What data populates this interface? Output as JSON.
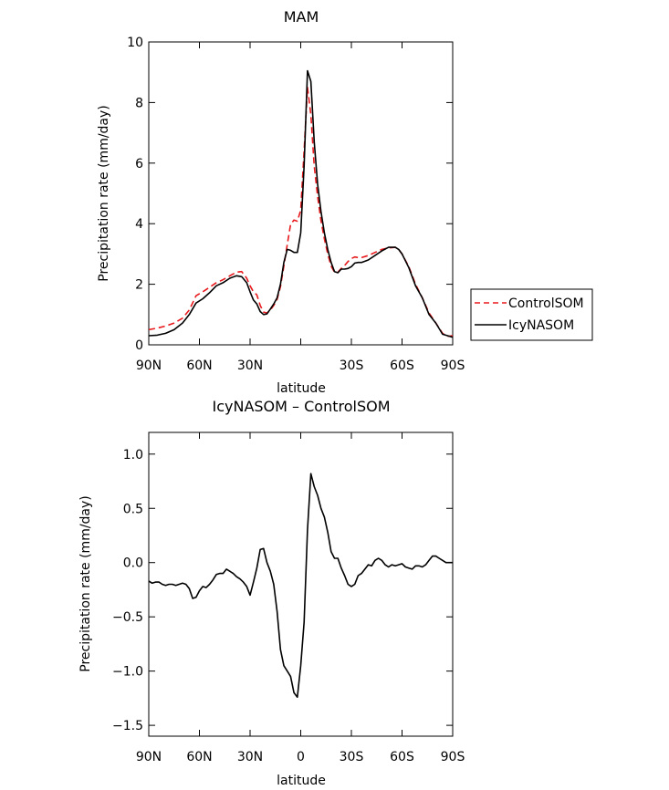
{
  "chart_data": [
    {
      "type": "line",
      "title": "MAM",
      "xlabel": "latitude",
      "ylabel": "Precipitation rate (mm/day)",
      "xlim": [
        90,
        -90
      ],
      "ylim": [
        0,
        10
      ],
      "x_ticks": [
        90,
        60,
        30,
        0,
        -30,
        -60,
        -90
      ],
      "x_tick_labels": [
        "90N",
        "60N",
        "30N",
        "",
        "30S",
        "60S",
        "90S"
      ],
      "y_ticks": [
        0,
        2,
        4,
        6,
        8,
        10
      ],
      "y_tick_labels": [
        "0",
        "2",
        "4",
        "6",
        "8",
        "10"
      ],
      "legend_position": "outside-right",
      "series": [
        {
          "name": "ControlSOM",
          "color": "#e8191c",
          "dash": "dashed",
          "x": [
            90,
            85,
            80,
            75,
            70,
            66,
            62,
            58,
            54,
            50,
            46,
            42,
            38,
            35,
            32,
            30,
            28,
            26,
            24,
            22,
            20,
            18,
            16,
            14,
            12,
            10,
            8,
            6,
            4,
            2,
            0,
            -2,
            -4,
            -6,
            -8,
            -10,
            -12,
            -14,
            -16,
            -18,
            -20,
            -22,
            -24,
            -26,
            -28,
            -30,
            -32,
            -34,
            -36,
            -40,
            -44,
            -48,
            -52,
            -56,
            -58,
            -60,
            -64,
            -68,
            -72,
            -76,
            -80,
            -84,
            -87,
            -90
          ],
          "values": [
            0.5,
            0.55,
            0.62,
            0.72,
            0.88,
            1.15,
            1.62,
            1.75,
            1.9,
            2.05,
            2.15,
            2.28,
            2.4,
            2.42,
            2.2,
            1.95,
            1.75,
            1.65,
            1.3,
            1.08,
            1.05,
            1.15,
            1.3,
            1.5,
            1.92,
            2.6,
            3.3,
            3.98,
            4.12,
            4.08,
            4.45,
            6.4,
            8.5,
            7.6,
            5.9,
            4.9,
            4.1,
            3.5,
            3.0,
            2.6,
            2.4,
            2.4,
            2.52,
            2.62,
            2.75,
            2.85,
            2.9,
            2.88,
            2.88,
            2.95,
            3.05,
            3.15,
            3.2,
            3.22,
            3.15,
            3.0,
            2.58,
            2.0,
            1.55,
            1.05,
            0.72,
            0.38,
            0.28,
            0.3
          ]
        },
        {
          "name": "IcyNASOM",
          "color": "#000000",
          "dash": "solid",
          "x": [
            90,
            85,
            80,
            75,
            70,
            66,
            62,
            58,
            54,
            50,
            46,
            42,
            38,
            35,
            32,
            30,
            28,
            26,
            24,
            22,
            20,
            18,
            16,
            14,
            12,
            10,
            8,
            6,
            4,
            2,
            0,
            -2,
            -4,
            -6,
            -8,
            -10,
            -12,
            -14,
            -16,
            -18,
            -20,
            -22,
            -24,
            -26,
            -28,
            -30,
            -32,
            -34,
            -36,
            -40,
            -44,
            -48,
            -52,
            -56,
            -58,
            -60,
            -64,
            -68,
            -72,
            -76,
            -80,
            -84,
            -87,
            -90
          ],
          "values": [
            0.3,
            0.32,
            0.38,
            0.5,
            0.72,
            1.0,
            1.38,
            1.52,
            1.72,
            1.95,
            2.05,
            2.2,
            2.28,
            2.25,
            2.05,
            1.75,
            1.48,
            1.35,
            1.1,
            1.0,
            1.02,
            1.18,
            1.35,
            1.55,
            2.0,
            2.72,
            3.15,
            3.12,
            3.05,
            3.05,
            3.7,
            5.9,
            9.05,
            8.7,
            6.7,
            5.3,
            4.4,
            3.7,
            3.15,
            2.72,
            2.42,
            2.38,
            2.5,
            2.5,
            2.52,
            2.58,
            2.7,
            2.72,
            2.72,
            2.8,
            2.95,
            3.1,
            3.22,
            3.22,
            3.15,
            3.0,
            2.55,
            1.95,
            1.55,
            1.0,
            0.72,
            0.35,
            0.3,
            0.25
          ]
        }
      ]
    },
    {
      "type": "line",
      "title": "IcyNASOM – ControlSOM",
      "xlabel": "latitude",
      "ylabel": "Precipitation rate (mm/day)",
      "xlim": [
        90,
        -90
      ],
      "ylim": [
        -1.6,
        1.2
      ],
      "x_ticks": [
        90,
        60,
        30,
        0,
        -30,
        -60,
        -90
      ],
      "x_tick_labels": [
        "90N",
        "60N",
        "30N",
        "0",
        "30S",
        "60S",
        "90S"
      ],
      "y_ticks": [
        -1.5,
        -1.0,
        -0.5,
        0.0,
        0.5,
        1.0
      ],
      "y_tick_labels": [
        "−1.5",
        "−1.0",
        "−0.5",
        "0.0",
        "0.5",
        "1.0"
      ],
      "series": [
        {
          "name": "",
          "color": "#000000",
          "dash": "solid",
          "x": [
            90,
            88,
            86,
            84,
            82,
            80,
            78,
            76,
            74,
            72,
            70,
            68,
            66,
            64,
            62,
            60,
            58,
            56,
            54,
            52,
            50,
            48,
            46,
            44,
            42,
            40,
            38,
            36,
            34,
            32,
            30,
            28,
            26,
            24,
            22,
            20,
            18,
            16,
            14,
            12,
            10,
            8,
            6,
            4,
            2,
            0,
            -2,
            -4,
            -6,
            -8,
            -10,
            -12,
            -14,
            -16,
            -18,
            -20,
            -22,
            -24,
            -26,
            -28,
            -30,
            -32,
            -34,
            -36,
            -38,
            -40,
            -42,
            -44,
            -46,
            -48,
            -50,
            -52,
            -54,
            -56,
            -58,
            -60,
            -62,
            -64,
            -66,
            -68,
            -70,
            -72,
            -74,
            -76,
            -78,
            -80,
            -82,
            -84,
            -86,
            -88,
            -90
          ],
          "values": [
            -0.17,
            -0.19,
            -0.18,
            -0.18,
            -0.2,
            -0.21,
            -0.2,
            -0.2,
            -0.21,
            -0.2,
            -0.19,
            -0.2,
            -0.24,
            -0.33,
            -0.32,
            -0.26,
            -0.22,
            -0.23,
            -0.2,
            -0.16,
            -0.11,
            -0.1,
            -0.1,
            -0.06,
            -0.08,
            -0.1,
            -0.13,
            -0.15,
            -0.18,
            -0.22,
            -0.3,
            -0.18,
            -0.05,
            0.12,
            0.13,
            0.0,
            -0.08,
            -0.2,
            -0.45,
            -0.8,
            -0.95,
            -1.0,
            -1.05,
            -1.2,
            -1.24,
            -0.95,
            -0.55,
            0.3,
            0.82,
            0.7,
            0.62,
            0.5,
            0.42,
            0.28,
            0.1,
            0.04,
            0.04,
            -0.05,
            -0.12,
            -0.2,
            -0.22,
            -0.2,
            -0.12,
            -0.1,
            -0.06,
            -0.02,
            -0.03,
            0.02,
            0.04,
            0.02,
            -0.02,
            -0.04,
            -0.02,
            -0.03,
            -0.02,
            -0.01,
            -0.04,
            -0.05,
            -0.06,
            -0.03,
            -0.03,
            -0.04,
            -0.02,
            0.02,
            0.06,
            0.06,
            0.04,
            0.02,
            0.0,
            0.0,
            0.0
          ]
        }
      ]
    }
  ]
}
